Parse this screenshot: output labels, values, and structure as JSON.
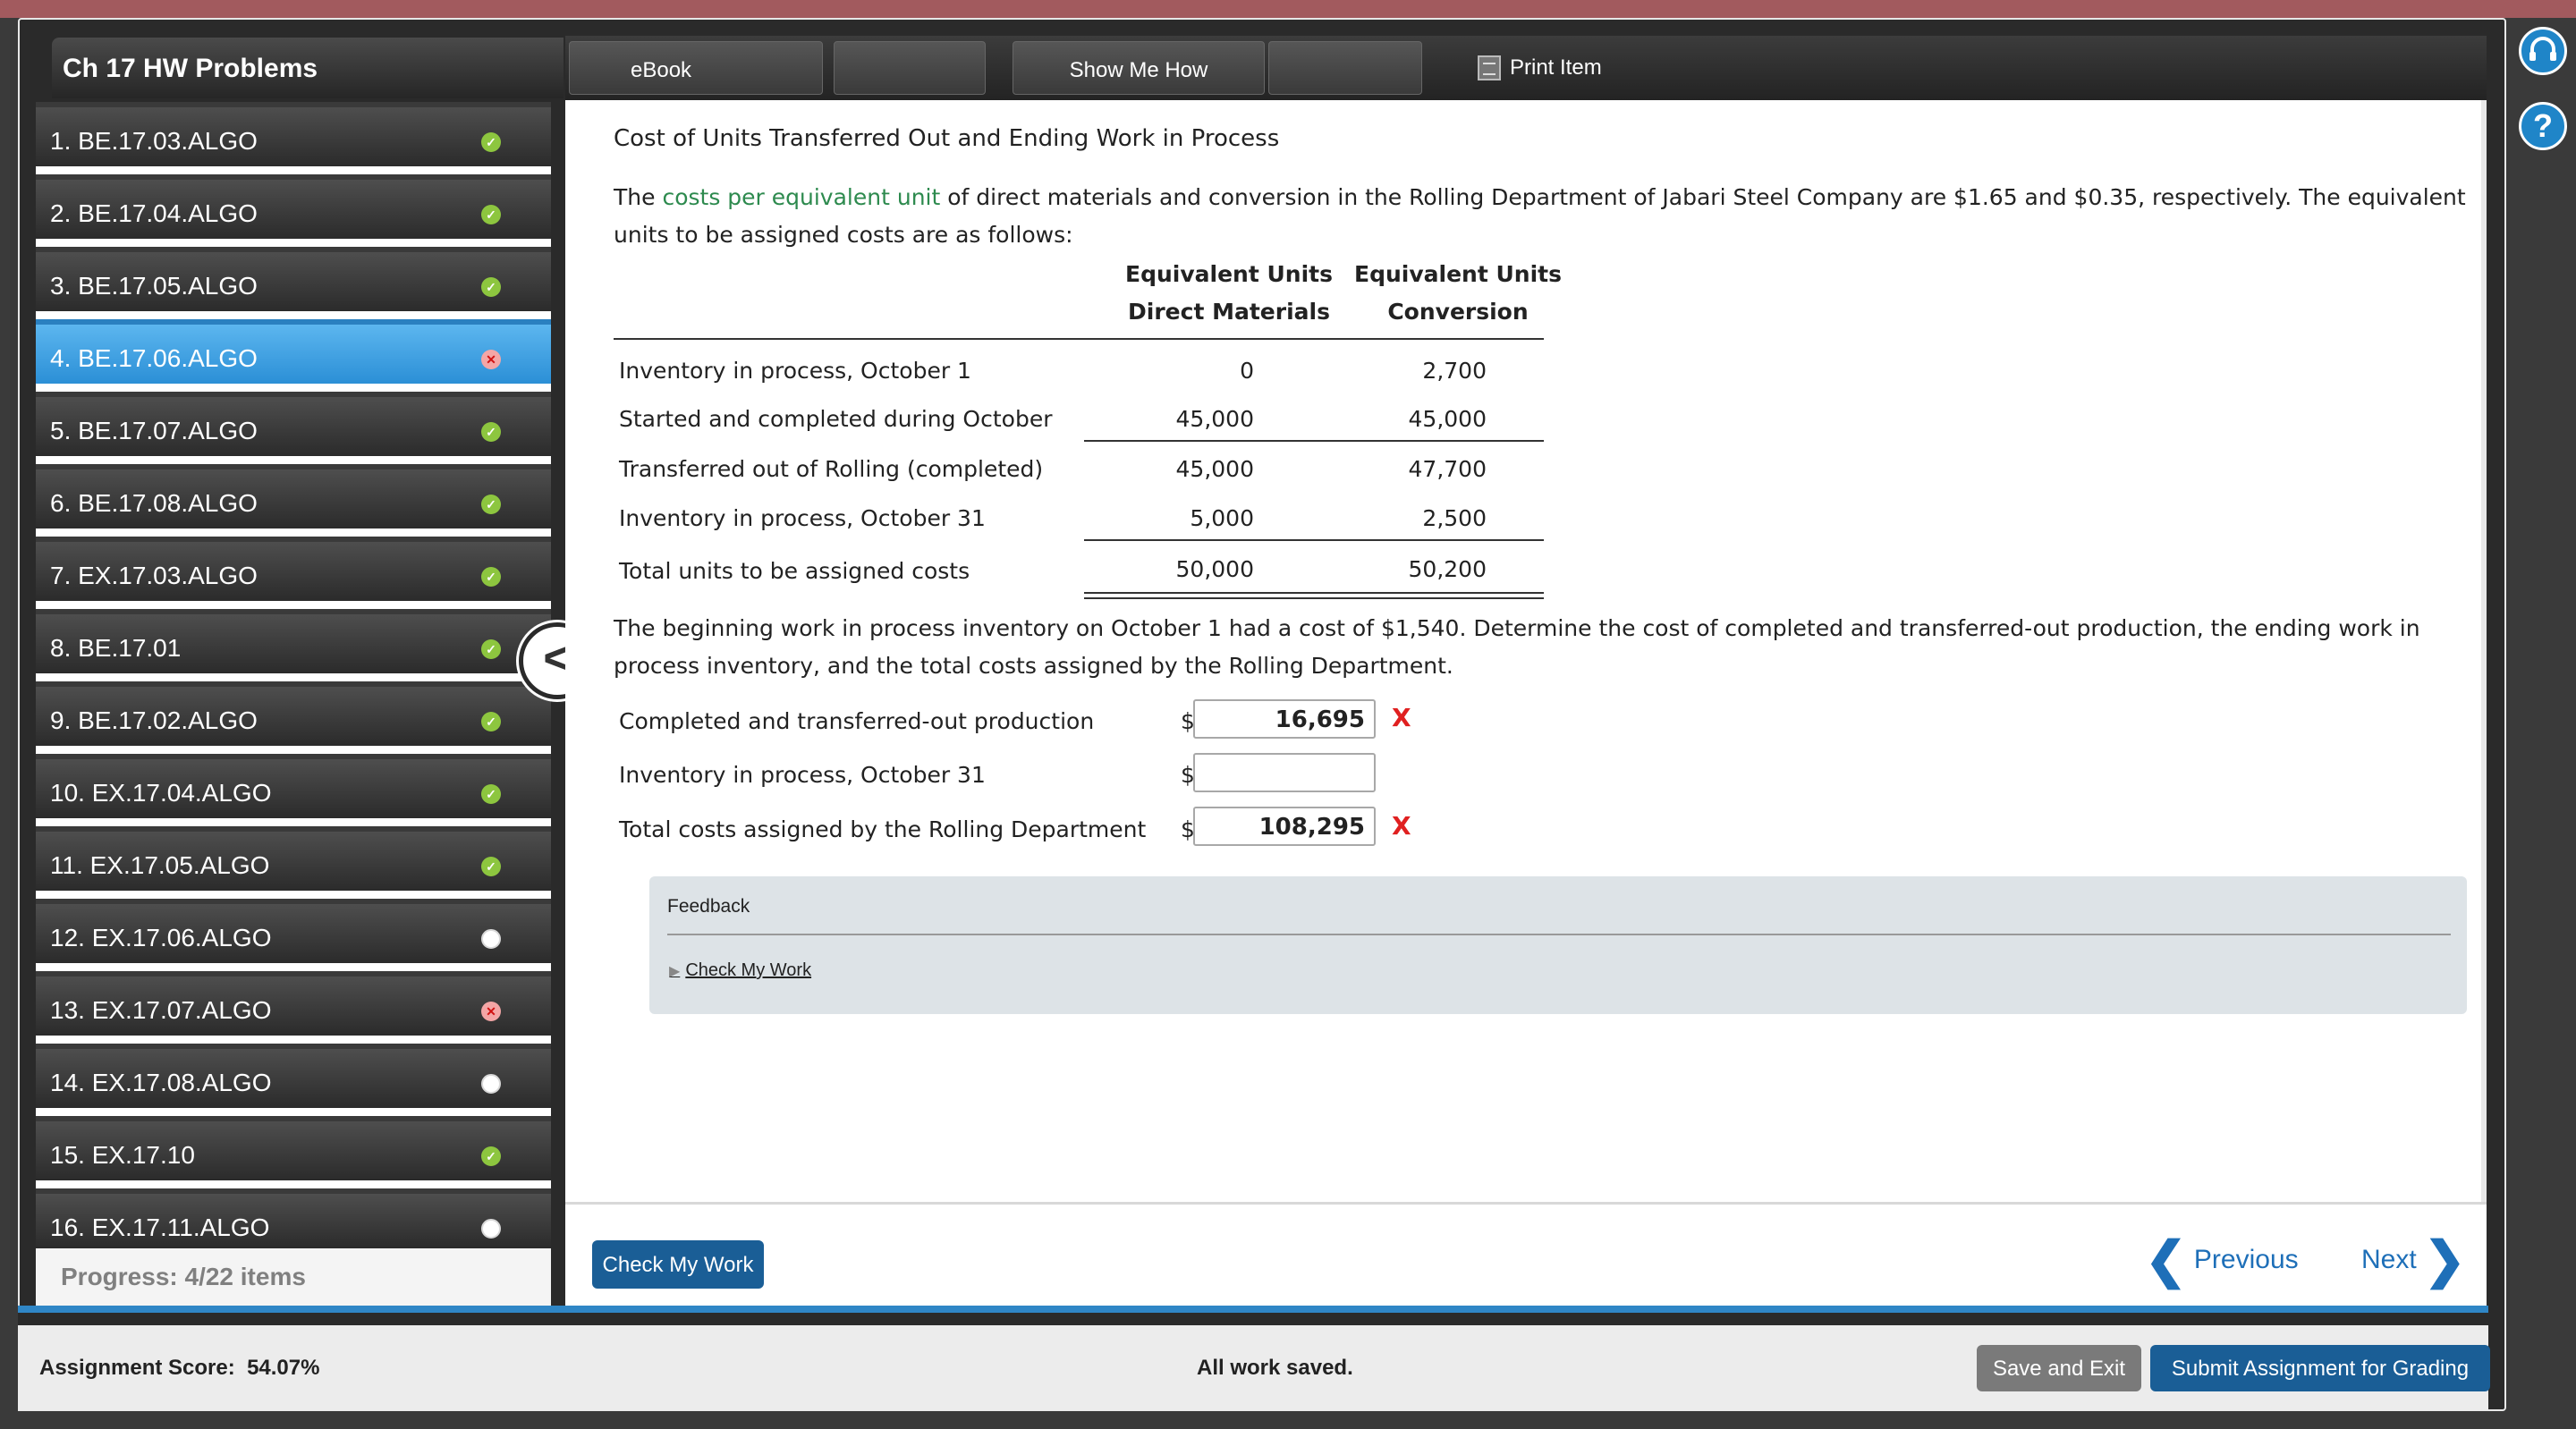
{
  "sidebar": {
    "title": "Ch 17 HW Problems",
    "items": [
      {
        "label": "1. BE.17.03.ALGO",
        "status": "correct"
      },
      {
        "label": "2. BE.17.04.ALGO",
        "status": "correct"
      },
      {
        "label": "3. BE.17.05.ALGO",
        "status": "correct"
      },
      {
        "label": "4. BE.17.06.ALGO",
        "status": "incorrect"
      },
      {
        "label": "5. BE.17.07.ALGO",
        "status": "correct"
      },
      {
        "label": "6. BE.17.08.ALGO",
        "status": "correct"
      },
      {
        "label": "7. EX.17.03.ALGO",
        "status": "correct"
      },
      {
        "label": "8. BE.17.01",
        "status": "correct"
      },
      {
        "label": "9. BE.17.02.ALGO",
        "status": "correct"
      },
      {
        "label": "10. EX.17.04.ALGO",
        "status": "correct"
      },
      {
        "label": "11. EX.17.05.ALGO",
        "status": "correct"
      },
      {
        "label": "12. EX.17.06.ALGO",
        "status": "unanswered"
      },
      {
        "label": "13. EX.17.07.ALGO",
        "status": "incorrect"
      },
      {
        "label": "14. EX.17.08.ALGO",
        "status": "unanswered"
      },
      {
        "label": "15. EX.17.10",
        "status": "correct"
      },
      {
        "label": "16. EX.17.11.ALGO",
        "status": "unanswered"
      }
    ],
    "progress": "Progress:  4/22 items",
    "collapse_glyph": "<"
  },
  "toolbar": {
    "ebook": "eBook",
    "show_me_how": "Show Me How",
    "print_item": "Print Item"
  },
  "problem": {
    "heading": "Cost of Units Transferred Out and Ending Work in Process",
    "intro_pre": "The ",
    "intro_link": "costs per equivalent unit",
    "intro_post": " of direct materials and conversion in the Rolling Department of Jabari Steel Company are $1.65 and $0.35, respectively. The equivalent units to be assigned costs are as follows:",
    "table": {
      "col1_line1": "Equivalent Units",
      "col1_line2": "Direct Materials",
      "col2_line1": "Equivalent Units",
      "col2_line2": "Conversion",
      "rows": [
        {
          "label": "Inventory in process, October 1",
          "dm": "0",
          "conv": "2,700"
        },
        {
          "label": "Started and completed during October",
          "dm": "45,000",
          "conv": "45,000"
        },
        {
          "label": "Transferred out of Rolling (completed)",
          "dm": "45,000",
          "conv": "47,700"
        },
        {
          "label": "Inventory in process, October 31",
          "dm": "5,000",
          "conv": "2,500"
        },
        {
          "label": "Total units to be assigned costs",
          "dm": "50,000",
          "conv": "50,200"
        }
      ]
    },
    "question": "The beginning work in process inventory on October 1 had a cost of $1,540. Determine the cost of completed and transferred-out production, the ending work in process inventory, and the total costs assigned by the Rolling Department.",
    "answers": [
      {
        "label": "Completed and transferred-out production",
        "currency": "$",
        "value": "16,695",
        "mark": "X"
      },
      {
        "label": "Inventory in process, October 31",
        "currency": "$",
        "value": "",
        "mark": ""
      },
      {
        "label": "Total costs assigned by the Rolling Department",
        "currency": "$",
        "value": "108,295",
        "mark": "X"
      }
    ],
    "feedback_title": "Feedback",
    "feedback_link": "Check My Work"
  },
  "nav": {
    "check_my_work": "Check My Work",
    "previous": "Previous",
    "next": "Next"
  },
  "footer": {
    "score_label": "Assignment Score:",
    "score_value": "54.07%",
    "saved": "All work saved.",
    "save_exit": "Save and Exit",
    "submit": "Submit Assignment for Grading"
  },
  "side_icons": {
    "help": "?"
  },
  "colors": {
    "accent": "#1a5e96",
    "link": "#2d8a4e",
    "active_item": "#3aa0e4",
    "error": "#e02020",
    "correct": "#8dc63f"
  }
}
